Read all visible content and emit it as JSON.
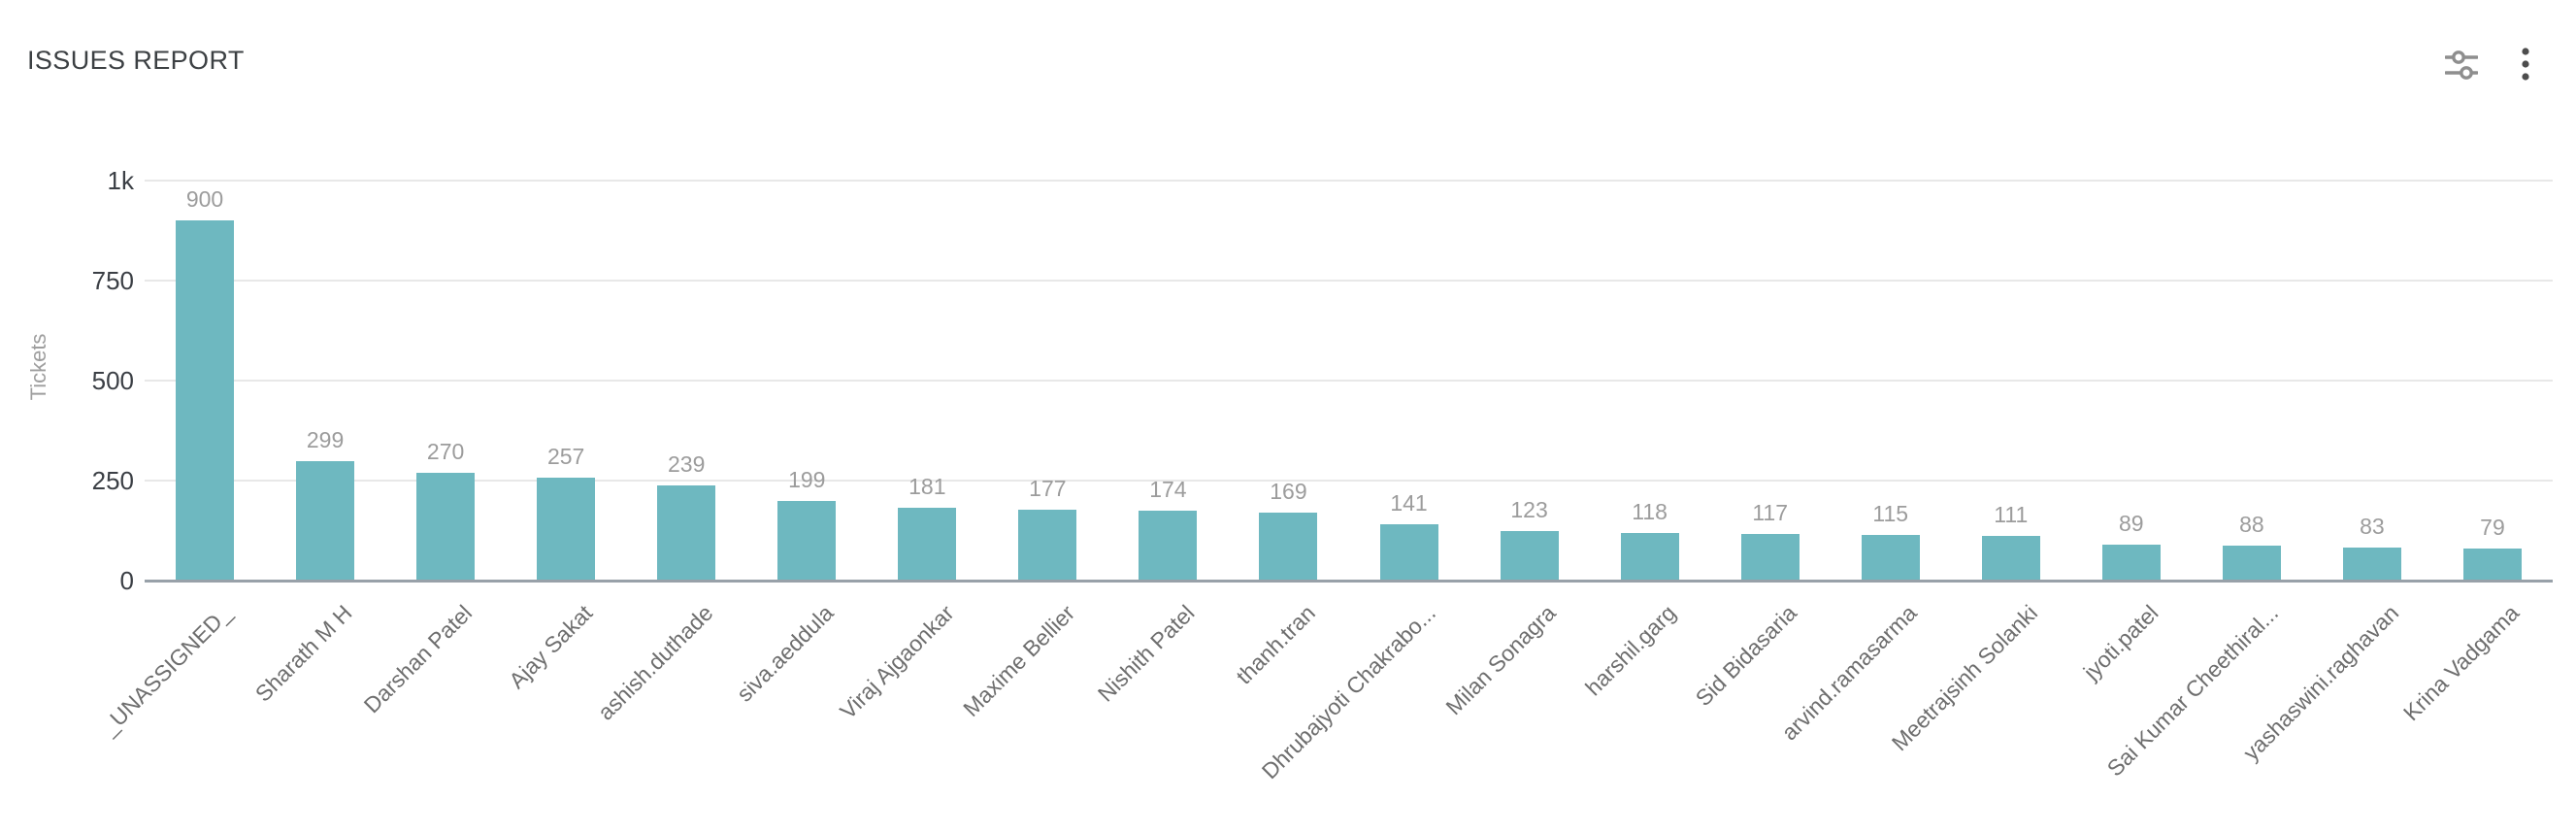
{
  "header": {
    "title": "ISSUES REPORT",
    "icons": [
      {
        "name": "sliders-icon",
        "meaning": "chart settings / filters"
      },
      {
        "name": "kebab-menu-icon",
        "meaning": "more options"
      }
    ]
  },
  "chart_data": {
    "type": "bar",
    "title": "ISSUES REPORT",
    "xlabel": "",
    "ylabel": "Tickets",
    "ylim": [
      0,
      1000
    ],
    "grid": true,
    "legend": false,
    "bar_color": "#6eb8c0",
    "value_label_color": "#9c9c9c",
    "yticks": [
      {
        "value": 0,
        "label": "0"
      },
      {
        "value": 250,
        "label": "250"
      },
      {
        "value": 500,
        "label": "500"
      },
      {
        "value": 750,
        "label": "750"
      },
      {
        "value": 1000,
        "label": "1k"
      }
    ],
    "categories": [
      "_UNASSIGNED_",
      "Sharath M H",
      "Darshan Patel",
      "Ajay Sakat",
      "ashish.duthade",
      "siva.aeddula",
      "Viraj Ajgaonkar",
      "Maxime Bellier",
      "Nishith Patel",
      "thanh.tran",
      "Dhrubajyoti Chakrabo...",
      "Milan Sonagra",
      "harshil.garg",
      "Sid Bidasaria",
      "arvind.ramasarma",
      "Meetrajsinh Solanki",
      "jyoti.patel",
      "Sai Kumar Cheethiral...",
      "yashaswini.raghavan",
      "Krina Vadgama"
    ],
    "values": [
      900,
      299,
      270,
      257,
      239,
      199,
      181,
      177,
      174,
      169,
      141,
      123,
      118,
      117,
      115,
      111,
      89,
      88,
      83,
      79
    ]
  }
}
